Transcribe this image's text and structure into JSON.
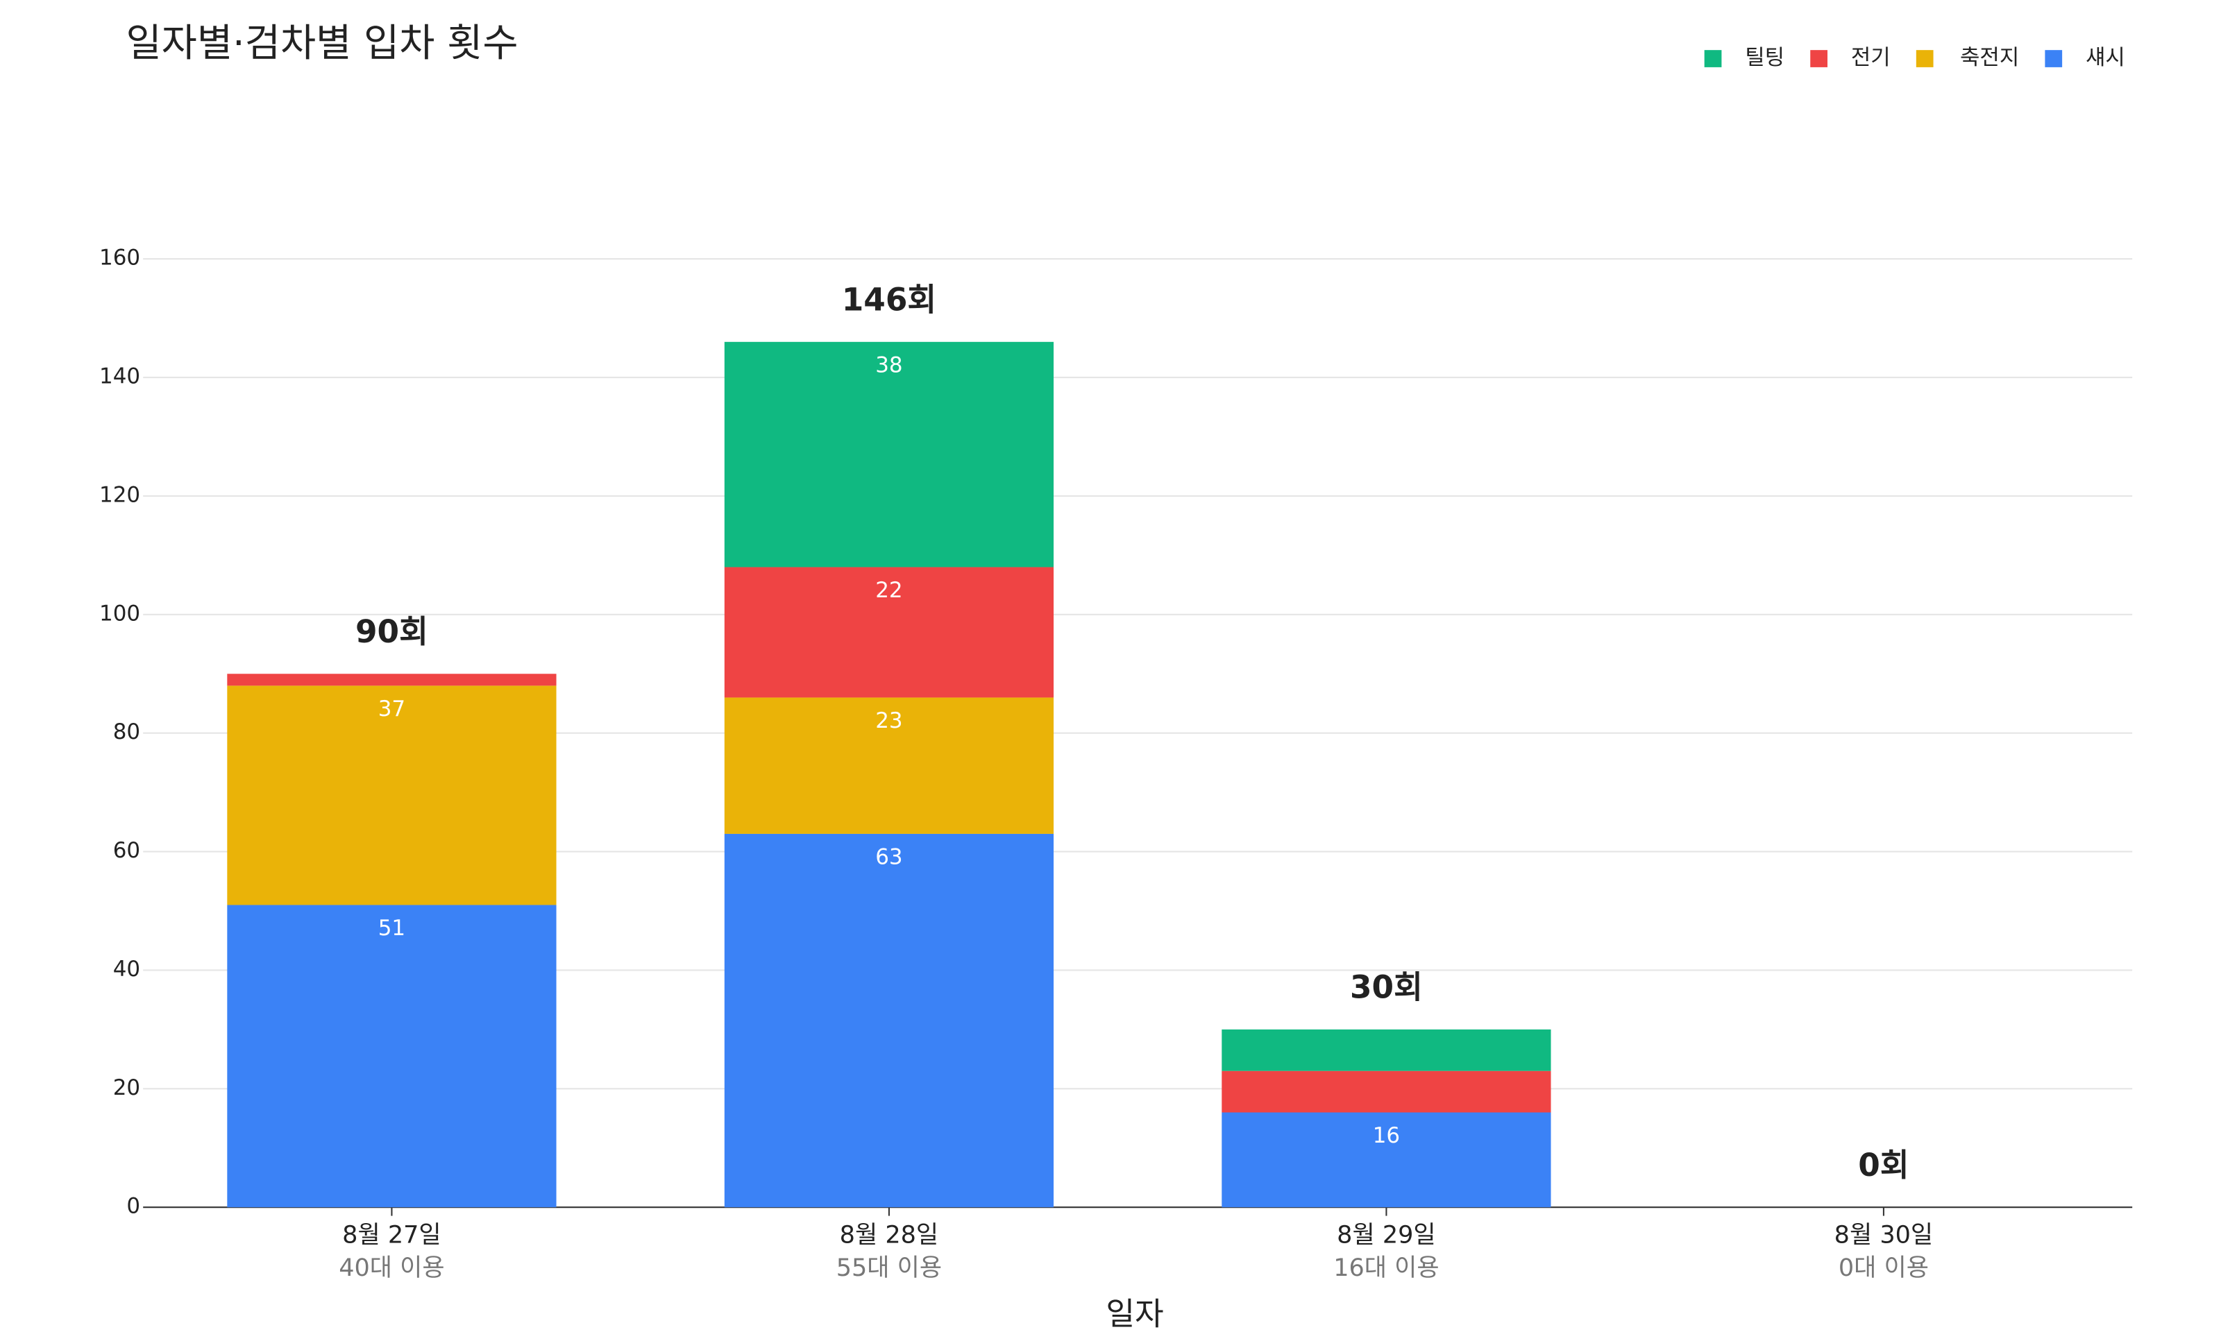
{
  "chart_data": {
    "type": "stacked_bar",
    "title": "일자별·검차별 입차 횟수",
    "x_label": "일자",
    "categories": [
      "8월 27일",
      "8월 28일",
      "8월 29일",
      "8월 30일"
    ],
    "sublabels": [
      "40대 이용",
      "55대 이용",
      "16대 이용",
      "0대 이용"
    ],
    "totals": [
      90,
      146,
      30,
      0
    ],
    "total_labels": [
      "90회",
      "146회",
      "30회",
      "0회"
    ],
    "series": [
      {
        "name": "섀시",
        "color": "#3b82f6",
        "values": [
          51,
          63,
          16,
          0
        ]
      },
      {
        "name": "축전지",
        "color": "#eab308",
        "values": [
          37,
          23,
          0,
          0
        ]
      },
      {
        "name": "전기",
        "color": "#ef4444",
        "values": [
          2,
          22,
          7,
          0
        ]
      },
      {
        "name": "틸팅",
        "color": "#10b981",
        "values": [
          0,
          38,
          7,
          0
        ]
      }
    ],
    "ylim": [
      0,
      160
    ],
    "yticks": [
      0,
      20,
      40,
      60,
      80,
      100,
      120,
      140,
      160
    ],
    "grid": true,
    "legend": "top-right"
  }
}
